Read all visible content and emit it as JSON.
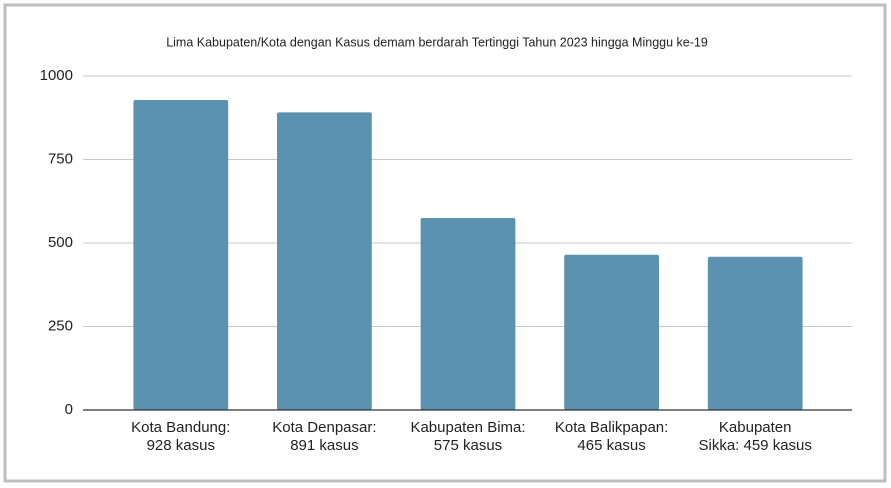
{
  "chart_data": {
    "type": "bar",
    "title": "Lima Kabupaten/Kota dengan Kasus demam berdarah Tertinggi Tahun 2023 hingga Minggu ke-19",
    "categories": [
      [
        "Kota Bandung:",
        "928 kasus"
      ],
      [
        "Kota Denpasar:",
        "891 kasus"
      ],
      [
        "Kabupaten Bima:",
        "575 kasus"
      ],
      [
        "Kota Balikpapan:",
        "465 kasus"
      ],
      [
        "Kabupaten",
        "Sikka: 459 kasus"
      ]
    ],
    "values": [
      928,
      891,
      575,
      465,
      459
    ],
    "color": "#5a92b0",
    "ylim": [
      0,
      1000
    ],
    "yticks": [
      0,
      250,
      500,
      750,
      1000
    ],
    "grid": true
  }
}
